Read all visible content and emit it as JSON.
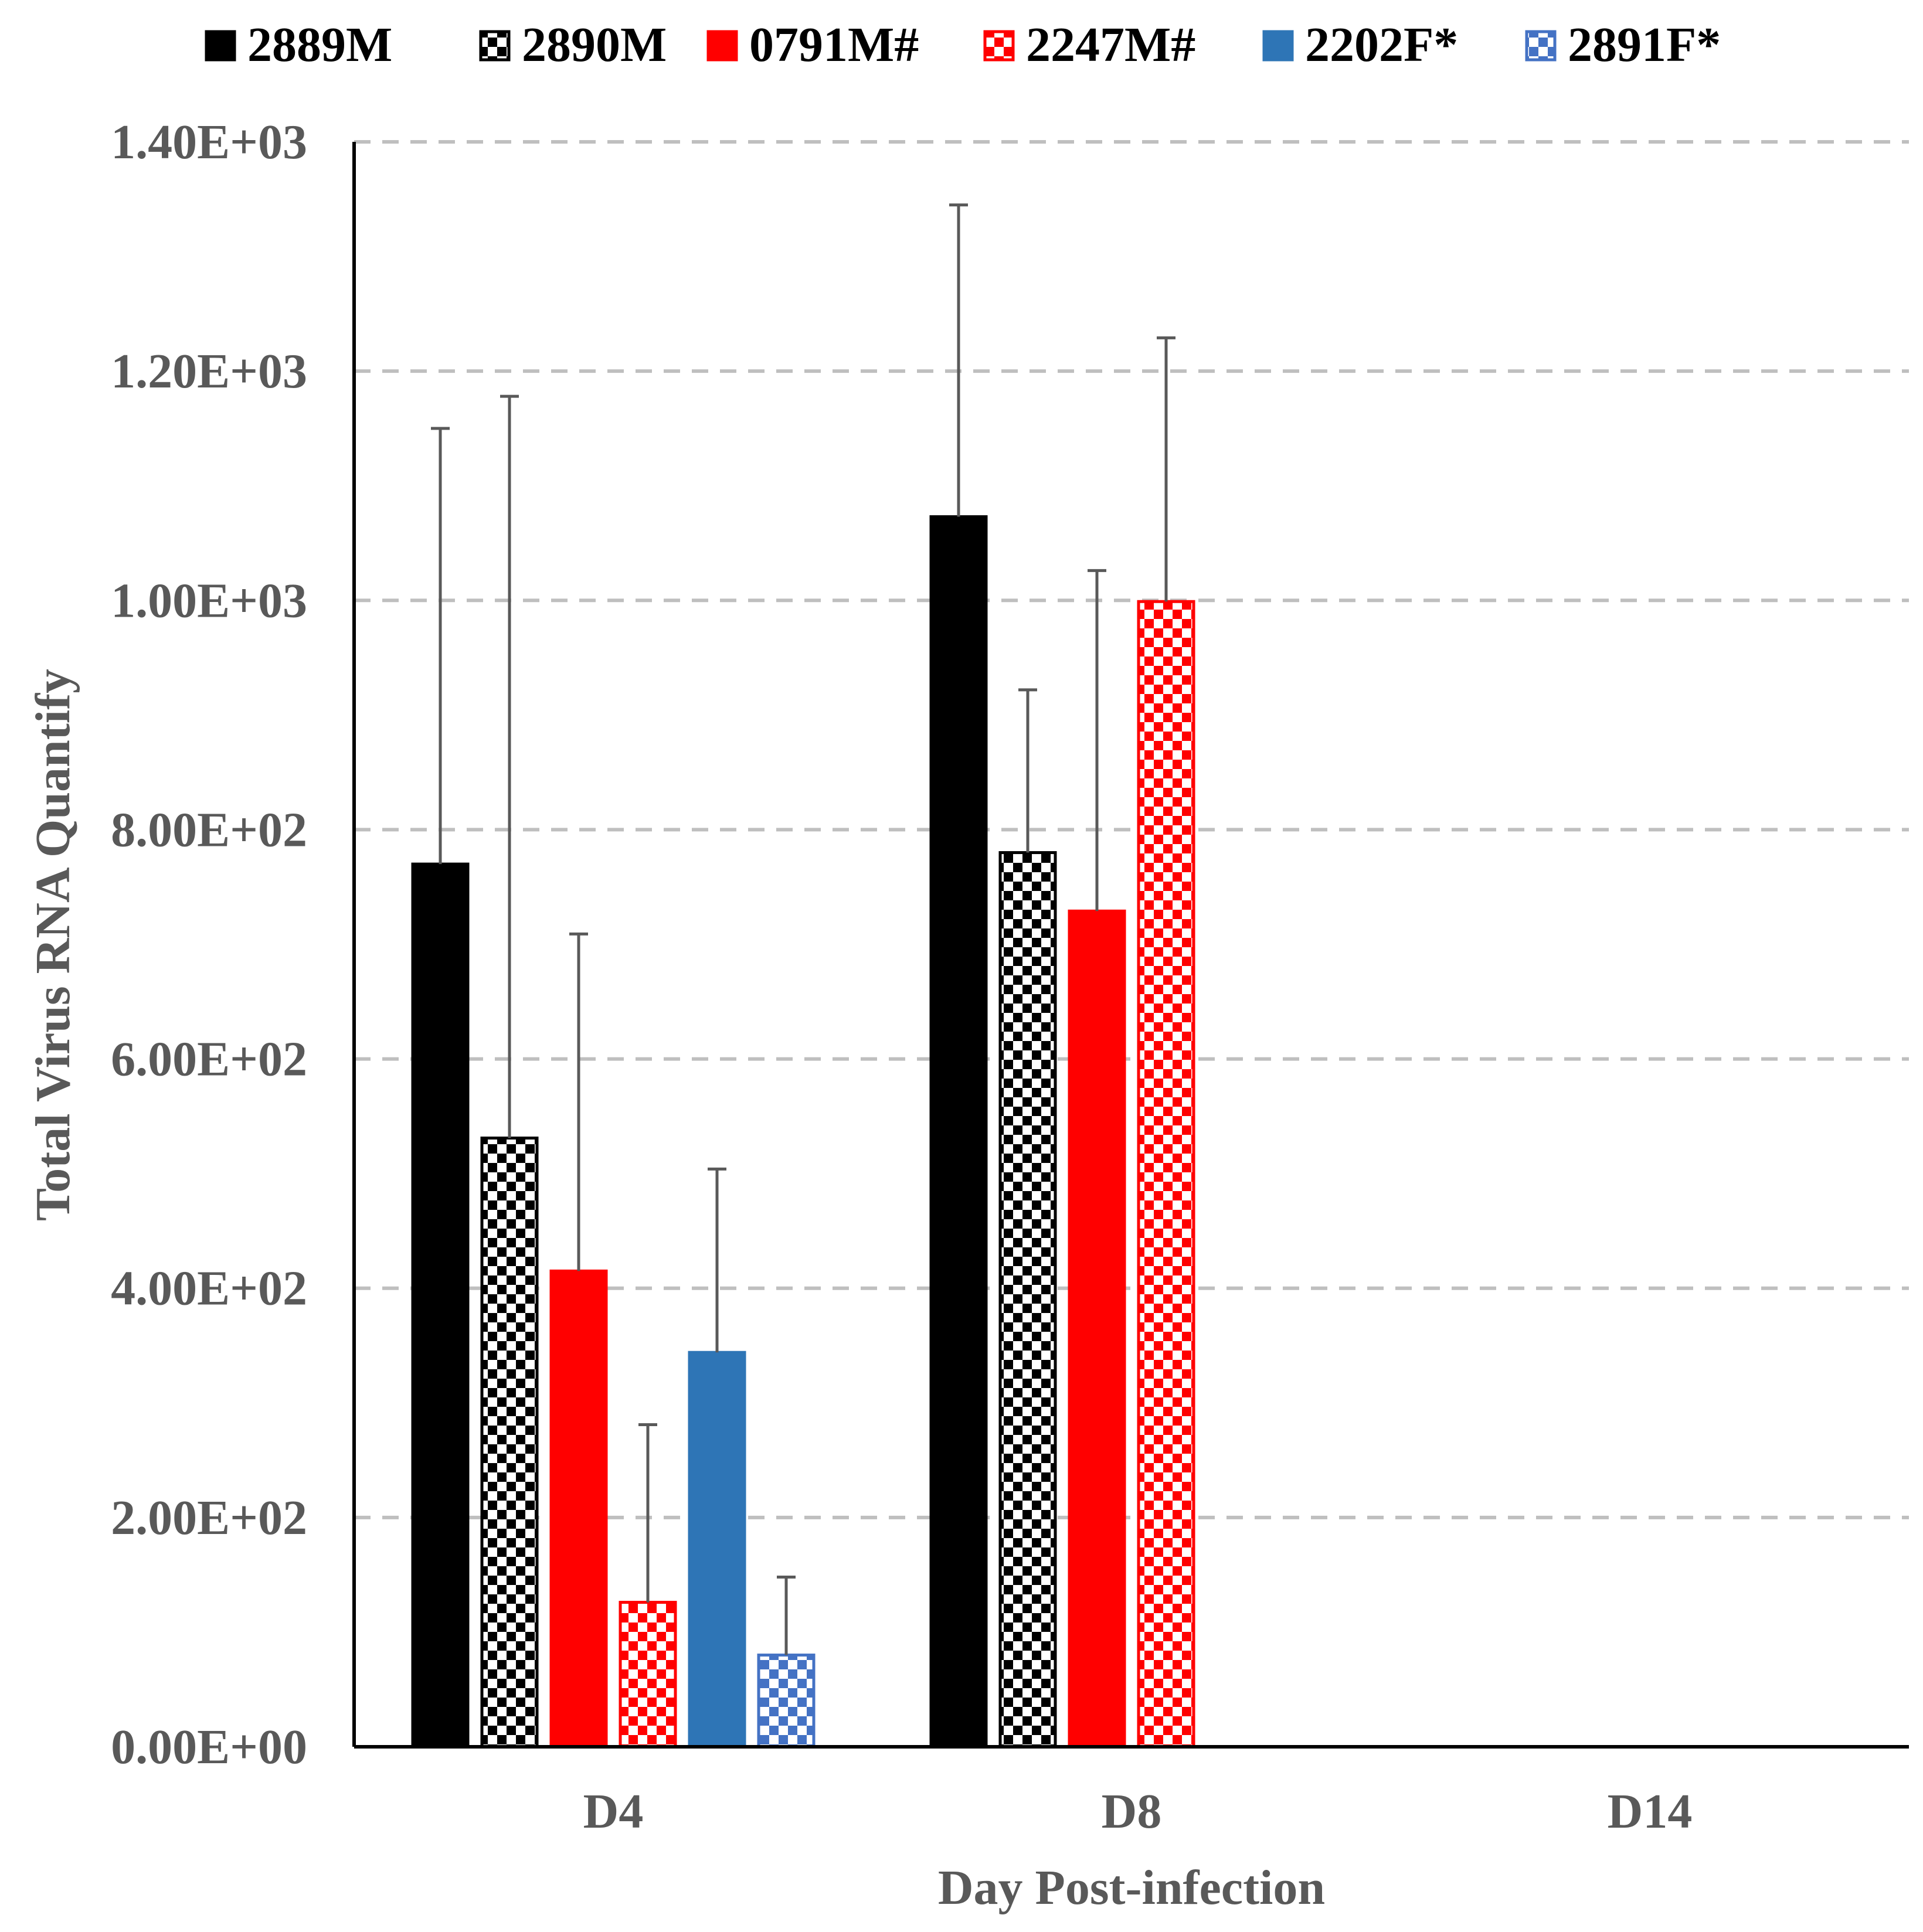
{
  "chart_data": {
    "type": "bar",
    "title": "",
    "xlabel": "Day Post-infection",
    "ylabel": "Total Virus RNA Quantify",
    "categories": [
      "D4",
      "D8",
      "D14"
    ],
    "ylim": [
      0,
      1400
    ],
    "yticks": [
      0,
      200,
      400,
      600,
      800,
      1000,
      1200,
      1400
    ],
    "ytick_labels": [
      "0.00E+00",
      "2.00E+02",
      "4.00E+02",
      "6.00E+02",
      "8.00E+02",
      "1.00E+03",
      "1.20E+03",
      "1.40E+03"
    ],
    "grid": "horizontal dashed",
    "legend_position": "top",
    "error_bars": true,
    "series": [
      {
        "name": "2889M",
        "color": "#000000",
        "pattern": "solid",
        "values": [
          770,
          1073,
          0
        ],
        "errors": [
          380,
          272,
          0
        ]
      },
      {
        "name": "2890M",
        "color": "#000000",
        "pattern": "checker",
        "values": [
          531,
          780,
          0
        ],
        "errors": [
          647,
          142,
          0
        ]
      },
      {
        "name": "0791M#",
        "color": "#ff0000",
        "pattern": "solid",
        "values": [
          415,
          729,
          0
        ],
        "errors": [
          294,
          297,
          0
        ]
      },
      {
        "name": "2247M#",
        "color": "#ff0000",
        "pattern": "checker",
        "values": [
          126,
          999,
          0
        ],
        "errors": [
          155,
          230,
          0
        ]
      },
      {
        "name": "2202F*",
        "color": "#2e75b6",
        "pattern": "solid",
        "values": [
          344,
          0,
          0
        ],
        "errors": [
          160,
          0,
          0
        ]
      },
      {
        "name": "2891F*",
        "color": "#4472c4",
        "pattern": "checker",
        "values": [
          80,
          0,
          0
        ],
        "errors": [
          68,
          0,
          0
        ]
      }
    ]
  }
}
